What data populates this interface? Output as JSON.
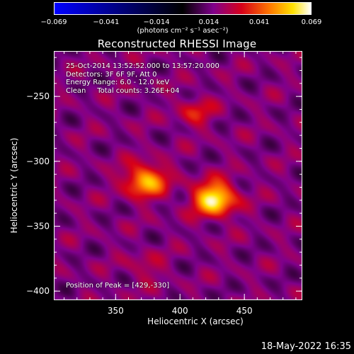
{
  "chart_data": {
    "type": "heatmap",
    "title": "Reconstructed RHESSI Image",
    "xlabel": "Heliocentric X (arcsec)",
    "ylabel": "Heliocentric Y (arcsec)",
    "xlim": [
      302,
      495
    ],
    "ylim": [
      -407,
      -215
    ],
    "xticks": [
      350,
      400,
      450
    ],
    "yticks": [
      -250,
      -300,
      -350,
      -400
    ],
    "colorbar": {
      "range": [
        -0.069,
        0.069
      ],
      "tick_values": [
        -0.069,
        -0.041,
        -0.014,
        0.014,
        0.041,
        0.069
      ],
      "tick_labels": [
        "-0.069",
        "-0.041",
        "-0.014",
        "0.014",
        "0.041",
        "0.069"
      ],
      "label": "(photons cm⁻² s⁻¹ asec⁻²)",
      "colormap": "rainbow-hot"
    },
    "info_lines": [
      "25-Oct-2014 13:52:52.000 to 13:57:20.000",
      "Detectors: 3F 6F 9F, Att 0",
      "Energy Range: 6.0 - 12.0 keV",
      "Clean     Total counts: 3.26E+04"
    ],
    "peak_label": "Position of Peak = [429,-330]",
    "sources": [
      {
        "x": 427,
        "y": -329,
        "intensity": 0.069
      },
      {
        "x": 373,
        "y": -315,
        "intensity": 0.058
      },
      {
        "x": 412,
        "y": -262,
        "intensity": 0.036
      },
      {
        "x": 373,
        "y": -382,
        "intensity": 0.03
      }
    ]
  },
  "datestamp": "18-May-2022 16:35"
}
